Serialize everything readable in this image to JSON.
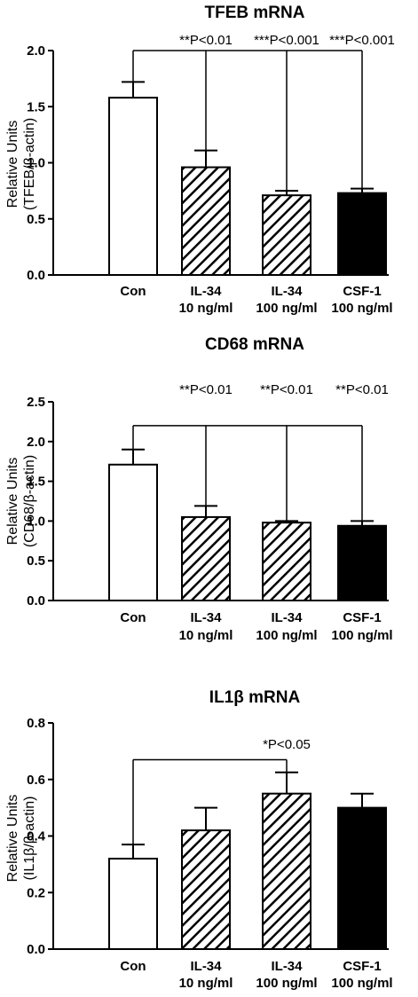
{
  "chart_data": [
    {
      "type": "bar",
      "title": "TFEB mRNA",
      "ylabel": "Relative Units",
      "ylabel2": "(TFEB/β-actin)",
      "ylim": [
        0,
        2.0
      ],
      "yticks": [
        "0.0",
        "0.5",
        "1.0",
        "1.5",
        "2.0"
      ],
      "categories": [
        {
          "line1": "Con",
          "line2": ""
        },
        {
          "line1": "IL-34",
          "line2": "10 ng/ml"
        },
        {
          "line1": "IL-34",
          "line2": "100 ng/ml"
        },
        {
          "line1": "CSF-1",
          "line2": "100 ng/ml"
        }
      ],
      "values": [
        1.58,
        0.96,
        0.71,
        0.73
      ],
      "errors": [
        0.14,
        0.15,
        0.04,
        0.04
      ],
      "fills": [
        "white",
        "hatch",
        "hatch",
        "black"
      ],
      "comparisons": {
        "from": 0,
        "line_y": 2.0,
        "to": [
          1,
          2,
          3
        ],
        "labels": [
          "**P<0.01",
          "***P<0.001",
          "***P<0.001"
        ]
      }
    },
    {
      "type": "bar",
      "title": "CD68 mRNA",
      "ylabel": "Relative Units",
      "ylabel2": "(CD68/β-actin)",
      "ylim": [
        0,
        2.5
      ],
      "yticks": [
        "0.0",
        "0.5",
        "1.0",
        "1.5",
        "2.0",
        "2.5"
      ],
      "categories": [
        {
          "line1": "Con",
          "line2": ""
        },
        {
          "line1": "IL-34",
          "line2": "10 ng/ml"
        },
        {
          "line1": "IL-34",
          "line2": "100 ng/ml"
        },
        {
          "line1": "CSF-1",
          "line2": "100 ng/ml"
        }
      ],
      "values": [
        1.71,
        1.05,
        0.98,
        0.94
      ],
      "errors": [
        0.19,
        0.14,
        0.02,
        0.06
      ],
      "fills": [
        "white",
        "hatch",
        "hatch",
        "black"
      ],
      "comparisons": {
        "from": 0,
        "line_y": 2.2,
        "to": [
          1,
          2,
          3
        ],
        "labels": [
          "**P<0.01",
          "**P<0.01",
          "**P<0.01"
        ]
      }
    },
    {
      "type": "bar",
      "title": "IL1β mRNA",
      "ylabel": "Relative Units",
      "ylabel2": "(IL1β/β-actin)",
      "ylim": [
        0,
        0.8
      ],
      "yticks": [
        "0.0",
        "0.2",
        "0.4",
        "0.6",
        "0.8"
      ],
      "categories": [
        {
          "line1": "Con",
          "line2": ""
        },
        {
          "line1": "IL-34",
          "line2": "10 ng/ml"
        },
        {
          "line1": "IL-34",
          "line2": "100 ng/ml"
        },
        {
          "line1": "CSF-1",
          "line2": "100 ng/ml"
        }
      ],
      "values": [
        0.32,
        0.42,
        0.55,
        0.5
      ],
      "errors": [
        0.05,
        0.08,
        0.075,
        0.05
      ],
      "fills": [
        "white",
        "hatch",
        "hatch",
        "black"
      ],
      "comparisons": {
        "from": 0,
        "line_y": 0.67,
        "to": [
          2
        ],
        "labels": [
          "*P<0.05"
        ]
      }
    }
  ]
}
